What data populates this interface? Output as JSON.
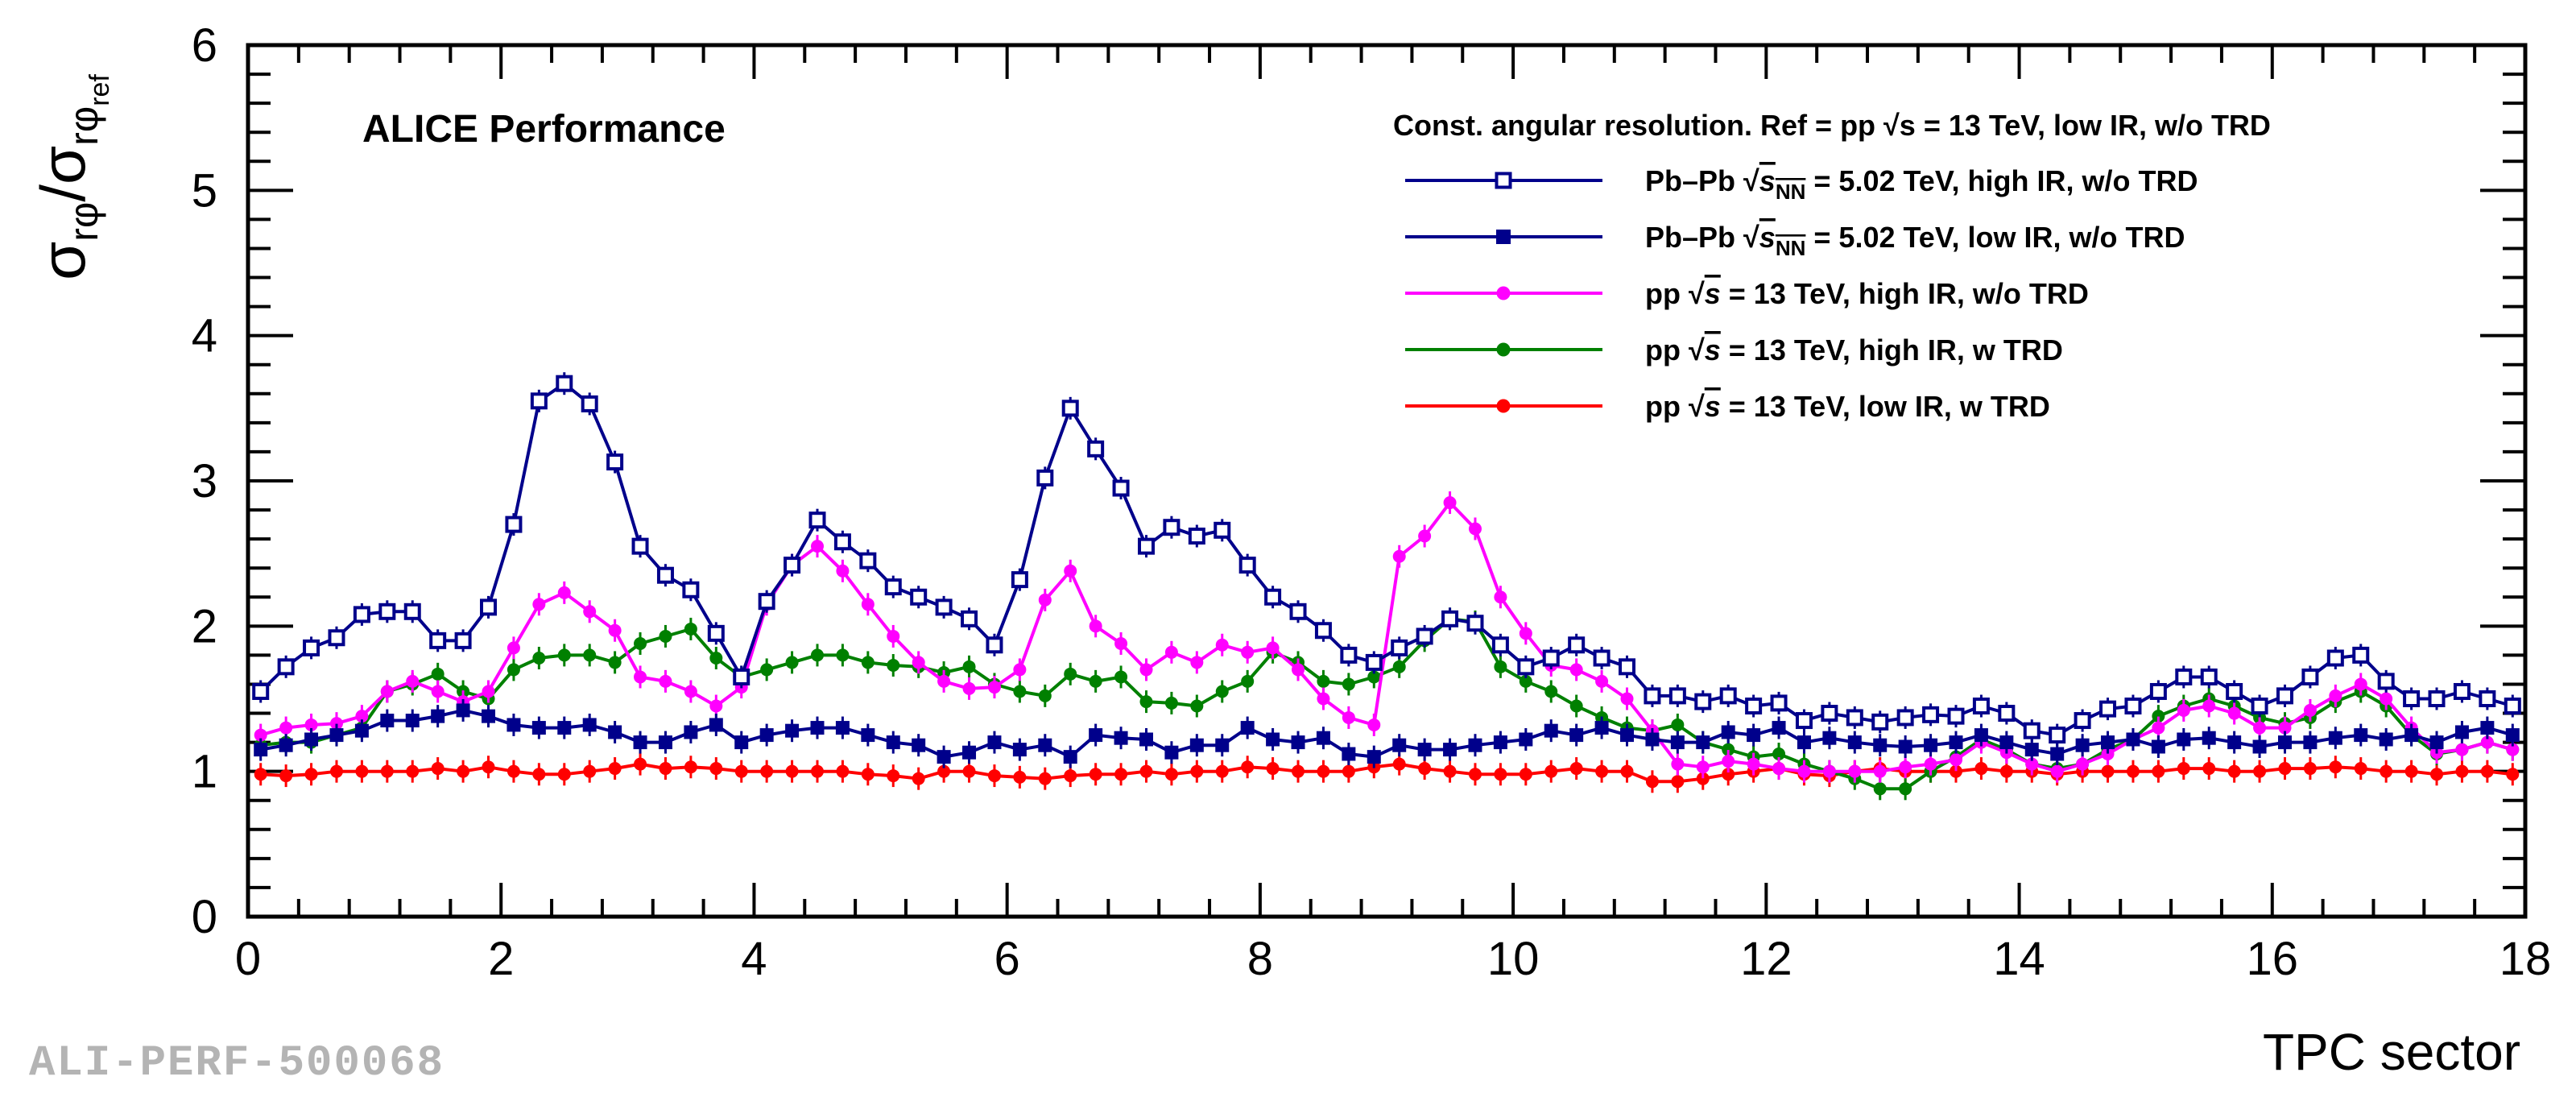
{
  "chart_data": {
    "type": "line",
    "annotation": "ALICE Performance",
    "legend_title": "Const. angular resolution. Ref = pp √s = 13 TeV, low IR, w/o TRD",
    "xlabel": "TPC sector",
    "ylabel": "σrφ/σrφref",
    "xlim": [
      0,
      18
    ],
    "ylim": [
      0,
      6
    ],
    "x_ticks": [
      0,
      2,
      4,
      6,
      8,
      10,
      12,
      14,
      16,
      18
    ],
    "y_ticks": [
      0,
      1,
      2,
      3,
      4,
      5,
      6
    ],
    "legend_position": "top-right",
    "grid": false,
    "x": [
      0.1,
      0.3,
      0.5,
      0.7,
      0.9,
      1.1,
      1.3,
      1.5,
      1.7,
      1.9,
      2.1,
      2.3,
      2.5,
      2.7,
      2.9,
      3.1,
      3.3,
      3.5,
      3.7,
      3.9,
      4.1,
      4.3,
      4.5,
      4.7,
      4.9,
      5.1,
      5.3,
      5.5,
      5.7,
      5.9,
      6.1,
      6.3,
      6.5,
      6.7,
      6.9,
      7.1,
      7.3,
      7.5,
      7.7,
      7.9,
      8.1,
      8.3,
      8.5,
      8.7,
      8.9,
      9.1,
      9.3,
      9.5,
      9.7,
      9.9,
      10.1,
      10.3,
      10.5,
      10.7,
      10.9,
      11.1,
      11.3,
      11.5,
      11.7,
      11.9,
      12.1,
      12.3,
      12.5,
      12.7,
      12.9,
      13.1,
      13.3,
      13.5,
      13.7,
      13.9,
      14.1,
      14.3,
      14.5,
      14.7,
      14.9,
      15.1,
      15.3,
      15.5,
      15.7,
      15.9,
      16.1,
      16.3,
      16.5,
      16.7,
      16.9,
      17.1,
      17.3,
      17.5,
      17.7,
      17.9
    ],
    "series": [
      {
        "name": "PbPb_high",
        "legend": {
          "system": "Pb–Pb",
          "sqrt_sub": "NN",
          "rest": "= 5.02 TeV, high IR, w/o TRD"
        },
        "color": "#00008b",
        "marker": "open-square",
        "values": [
          1.55,
          1.72,
          1.85,
          1.92,
          2.08,
          2.1,
          2.1,
          1.9,
          1.9,
          2.13,
          2.7,
          3.55,
          3.67,
          3.53,
          3.13,
          2.55,
          2.35,
          2.25,
          1.95,
          1.65,
          2.17,
          2.42,
          2.73,
          2.58,
          2.45,
          2.27,
          2.2,
          2.13,
          2.05,
          1.87,
          2.32,
          3.02,
          3.5,
          3.22,
          2.95,
          2.55,
          2.68,
          2.62,
          2.66,
          2.42,
          2.2,
          2.1,
          1.97,
          1.8,
          1.75,
          1.85,
          1.93,
          2.05,
          2.02,
          1.87,
          1.72,
          1.78,
          1.87,
          1.78,
          1.72,
          1.52,
          1.52,
          1.48,
          1.52,
          1.45,
          1.47,
          1.35,
          1.4,
          1.37,
          1.34,
          1.37,
          1.39,
          1.38,
          1.45,
          1.4,
          1.28,
          1.25,
          1.35,
          1.43,
          1.45,
          1.55,
          1.65,
          1.65,
          1.55,
          1.45,
          1.52,
          1.65,
          1.78,
          1.8,
          1.62,
          1.5,
          1.5,
          1.55,
          1.5,
          1.45
        ]
      },
      {
        "name": "PbPb_low",
        "legend": {
          "system": "Pb–Pb",
          "sqrt_sub": "NN",
          "rest": "= 5.02 TeV, low IR, w/o TRD"
        },
        "color": "#00008b",
        "marker": "filled-square",
        "values": [
          1.15,
          1.18,
          1.22,
          1.25,
          1.28,
          1.35,
          1.35,
          1.38,
          1.42,
          1.38,
          1.32,
          1.3,
          1.3,
          1.32,
          1.27,
          1.2,
          1.2,
          1.27,
          1.32,
          1.2,
          1.25,
          1.28,
          1.3,
          1.3,
          1.25,
          1.2,
          1.18,
          1.1,
          1.13,
          1.2,
          1.15,
          1.18,
          1.1,
          1.25,
          1.23,
          1.22,
          1.13,
          1.18,
          1.18,
          1.3,
          1.22,
          1.2,
          1.23,
          1.12,
          1.1,
          1.18,
          1.15,
          1.15,
          1.18,
          1.2,
          1.22,
          1.28,
          1.25,
          1.3,
          1.25,
          1.22,
          1.2,
          1.2,
          1.27,
          1.25,
          1.3,
          1.2,
          1.23,
          1.2,
          1.18,
          1.17,
          1.18,
          1.2,
          1.25,
          1.2,
          1.15,
          1.12,
          1.18,
          1.2,
          1.22,
          1.17,
          1.22,
          1.23,
          1.2,
          1.17,
          1.2,
          1.2,
          1.23,
          1.25,
          1.22,
          1.25,
          1.2,
          1.27,
          1.3,
          1.25
        ]
      },
      {
        "name": "pp_high_woTRD",
        "legend": {
          "system": "pp",
          "sqrt_sub": "",
          "rest": "= 13 TeV, high IR, w/o TRD"
        },
        "color": "#ff00ff",
        "marker": "filled-circle",
        "values": [
          1.25,
          1.3,
          1.32,
          1.33,
          1.38,
          1.55,
          1.62,
          1.55,
          1.48,
          1.55,
          1.85,
          2.15,
          2.23,
          2.1,
          1.97,
          1.65,
          1.62,
          1.55,
          1.45,
          1.58,
          2.15,
          2.42,
          2.55,
          2.38,
          2.15,
          1.93,
          1.75,
          1.62,
          1.57,
          1.58,
          1.7,
          2.18,
          2.38,
          2.0,
          1.88,
          1.7,
          1.82,
          1.75,
          1.87,
          1.82,
          1.85,
          1.7,
          1.5,
          1.37,
          1.32,
          2.48,
          2.62,
          2.85,
          2.67,
          2.2,
          1.95,
          1.73,
          1.7,
          1.62,
          1.5,
          1.28,
          1.05,
          1.03,
          1.07,
          1.05,
          1.02,
          1.0,
          1.0,
          1.0,
          1.0,
          1.03,
          1.05,
          1.08,
          1.2,
          1.13,
          1.05,
          1.0,
          1.05,
          1.12,
          1.22,
          1.3,
          1.42,
          1.45,
          1.4,
          1.3,
          1.3,
          1.42,
          1.52,
          1.6,
          1.5,
          1.3,
          1.13,
          1.15,
          1.2,
          1.15
        ]
      },
      {
        "name": "pp_high_wTRD",
        "legend": {
          "system": "pp",
          "sqrt_sub": "",
          "rest": "= 13 TeV, high IR, w TRD"
        },
        "color": "#008000",
        "marker": "filled-circle",
        "values": [
          1.18,
          1.2,
          1.2,
          1.25,
          1.3,
          1.55,
          1.6,
          1.67,
          1.55,
          1.5,
          1.7,
          1.78,
          1.8,
          1.8,
          1.75,
          1.88,
          1.93,
          1.98,
          1.78,
          1.65,
          1.7,
          1.75,
          1.8,
          1.8,
          1.75,
          1.73,
          1.72,
          1.68,
          1.72,
          1.6,
          1.55,
          1.52,
          1.67,
          1.62,
          1.65,
          1.48,
          1.47,
          1.45,
          1.55,
          1.62,
          1.82,
          1.75,
          1.62,
          1.6,
          1.65,
          1.72,
          1.9,
          2.05,
          2.03,
          1.72,
          1.62,
          1.55,
          1.45,
          1.37,
          1.3,
          1.28,
          1.32,
          1.2,
          1.15,
          1.1,
          1.12,
          1.05,
          1.0,
          0.95,
          0.88,
          0.88,
          1.0,
          1.1,
          1.22,
          1.15,
          1.05,
          1.02,
          1.05,
          1.15,
          1.22,
          1.38,
          1.45,
          1.5,
          1.45,
          1.37,
          1.33,
          1.37,
          1.48,
          1.55,
          1.45,
          1.25,
          1.12,
          1.15,
          1.2,
          1.15
        ]
      },
      {
        "name": "pp_low_wTRD",
        "legend": {
          "system": "pp",
          "sqrt_sub": "",
          "rest": "= 13 TeV, low IR, w TRD"
        },
        "color": "#ff0000",
        "marker": "filled-circle",
        "values": [
          0.98,
          0.97,
          0.98,
          1.0,
          1.0,
          1.0,
          1.0,
          1.02,
          1.0,
          1.03,
          1.0,
          0.98,
          0.98,
          1.0,
          1.02,
          1.05,
          1.02,
          1.03,
          1.02,
          1.0,
          1.0,
          1.0,
          1.0,
          1.0,
          0.98,
          0.97,
          0.95,
          1.0,
          1.0,
          0.97,
          0.96,
          0.95,
          0.97,
          0.98,
          0.98,
          1.0,
          0.98,
          1.0,
          1.0,
          1.03,
          1.02,
          1.0,
          1.0,
          1.0,
          1.03,
          1.05,
          1.02,
          1.0,
          0.98,
          0.98,
          0.98,
          1.0,
          1.02,
          1.0,
          1.0,
          0.93,
          0.93,
          0.95,
          0.98,
          1.0,
          1.02,
          0.98,
          0.97,
          1.0,
          1.02,
          1.0,
          1.0,
          1.0,
          1.02,
          1.0,
          1.0,
          0.98,
          1.0,
          1.0,
          1.0,
          1.0,
          1.02,
          1.02,
          1.0,
          1.0,
          1.02,
          1.02,
          1.03,
          1.02,
          1.0,
          1.0,
          0.98,
          1.0,
          1.0,
          0.98
        ]
      }
    ]
  },
  "watermark": "ALI-PERF-500068"
}
